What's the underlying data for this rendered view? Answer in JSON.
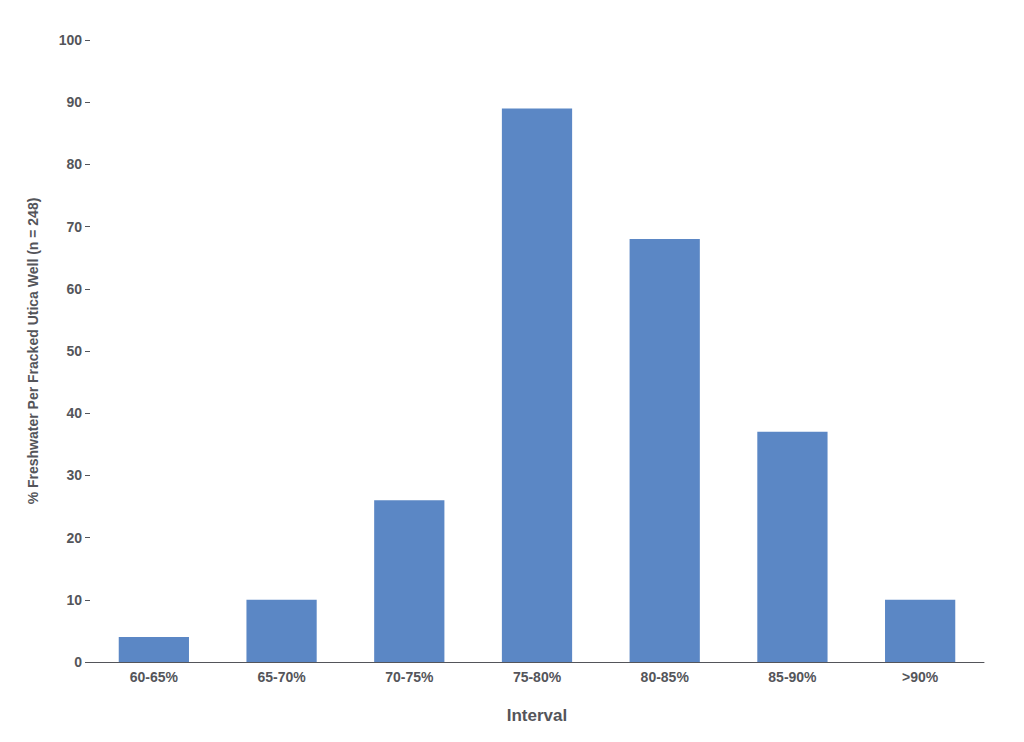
{
  "chart_data": {
    "type": "bar",
    "categories": [
      "60-65%",
      "65-70%",
      "70-75%",
      "75-80%",
      "80-85%",
      "85-90%",
      ">90%"
    ],
    "values": [
      4,
      10,
      26,
      89,
      68,
      37,
      10
    ],
    "color": "#5b87c5",
    "xlabel": "Interval",
    "ylabel": "% Freshwater Per Fracked Utica Well (n = 248)",
    "ylim": [
      0,
      100
    ],
    "yticks": [
      0,
      10,
      20,
      30,
      40,
      50,
      60,
      70,
      80,
      90,
      100
    ],
    "grid": false
  }
}
